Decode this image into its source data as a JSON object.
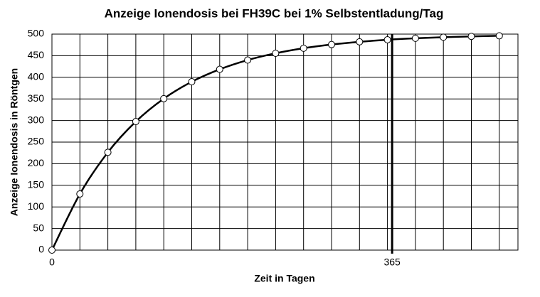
{
  "chart_data": {
    "type": "line",
    "title": "Anzeige Ionendosis bei FH39C bei 1% Selbstentladung/Tag",
    "x_label": "Zeit in Tagen",
    "y_label": "Anzeige Ionendosis in Röntgen",
    "x": [
      0,
      30,
      60,
      90,
      120,
      150,
      180,
      210,
      240,
      270,
      300,
      330,
      360,
      390,
      420,
      450,
      480
    ],
    "series": [
      {
        "name": "Anzeige",
        "color": "#000000",
        "values": [
          0,
          130,
          226.4,
          297.6,
          350.6,
          389.7,
          418.5,
          439.9,
          455.6,
          467.3,
          475.9,
          482.2,
          486.9,
          490.3,
          492.8,
          494.7,
          496.0
        ]
      }
    ],
    "xlim": [
      0,
      500
    ],
    "xticks": [
      0,
      365
    ],
    "x_grid": [
      30,
      60,
      90,
      120,
      150,
      180,
      210,
      240,
      270,
      300,
      330,
      360,
      390,
      420,
      450,
      480
    ],
    "highlight_x": 365,
    "ylim": [
      0,
      500
    ],
    "yticks": [
      0,
      50,
      100,
      150,
      200,
      250,
      300,
      350,
      400,
      450,
      500
    ],
    "grid": true,
    "marker": "circle"
  }
}
